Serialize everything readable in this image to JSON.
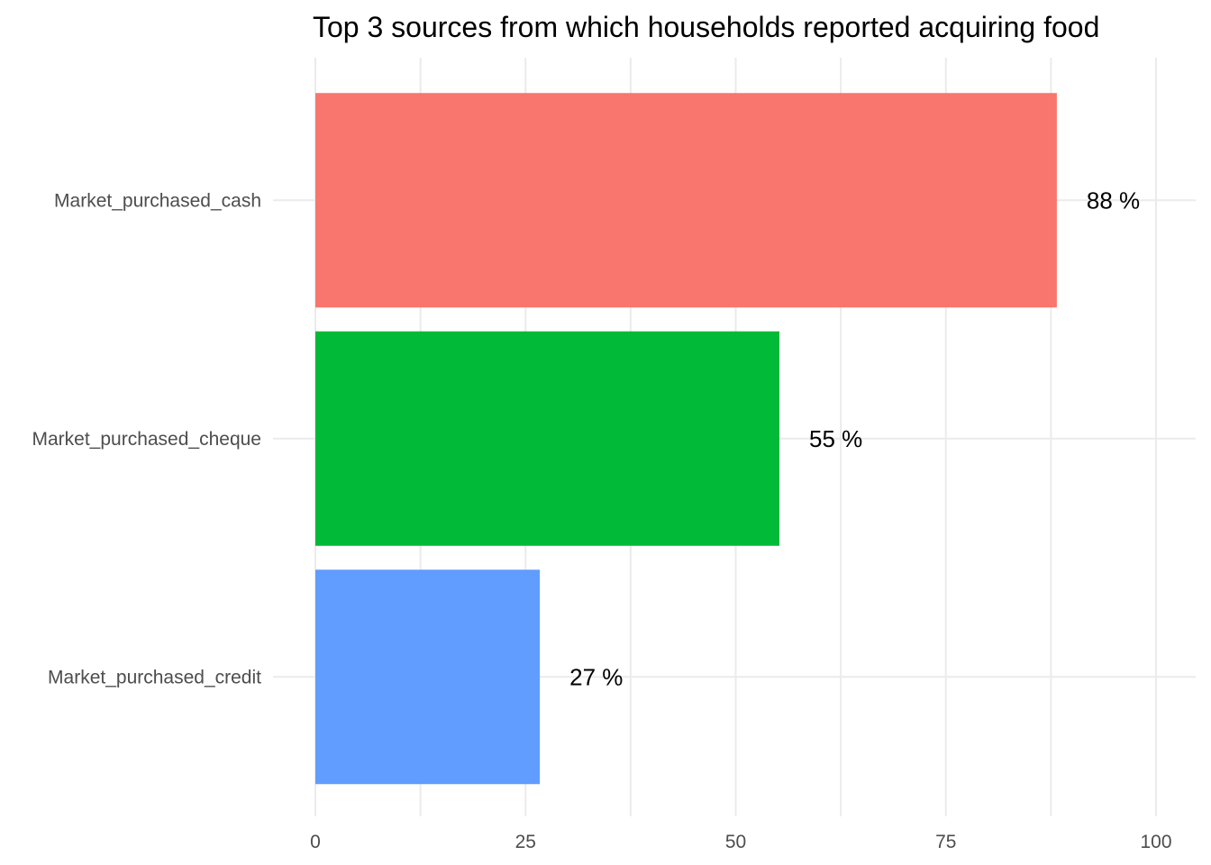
{
  "chart_data": {
    "type": "bar",
    "orientation": "horizontal",
    "title": "Top 3 sources from which households reported acquiring food",
    "xlabel": "",
    "ylabel": "",
    "categories": [
      "Market_purchased_cash",
      "Market_purchased_cheque",
      "Market_purchased_credit"
    ],
    "values": [
      88.2,
      55.2,
      26.7
    ],
    "data_labels": [
      "88 %",
      "55 %",
      "27 %"
    ],
    "colors": [
      "#F8766D",
      "#00BA38",
      "#619CFF"
    ],
    "xlim": [
      0,
      100
    ],
    "x_ticks": [
      0,
      25,
      50,
      75,
      100
    ],
    "x_tick_labels": [
      "0",
      "25",
      "50",
      "75",
      "100"
    ],
    "grid": true,
    "legend": "none"
  }
}
